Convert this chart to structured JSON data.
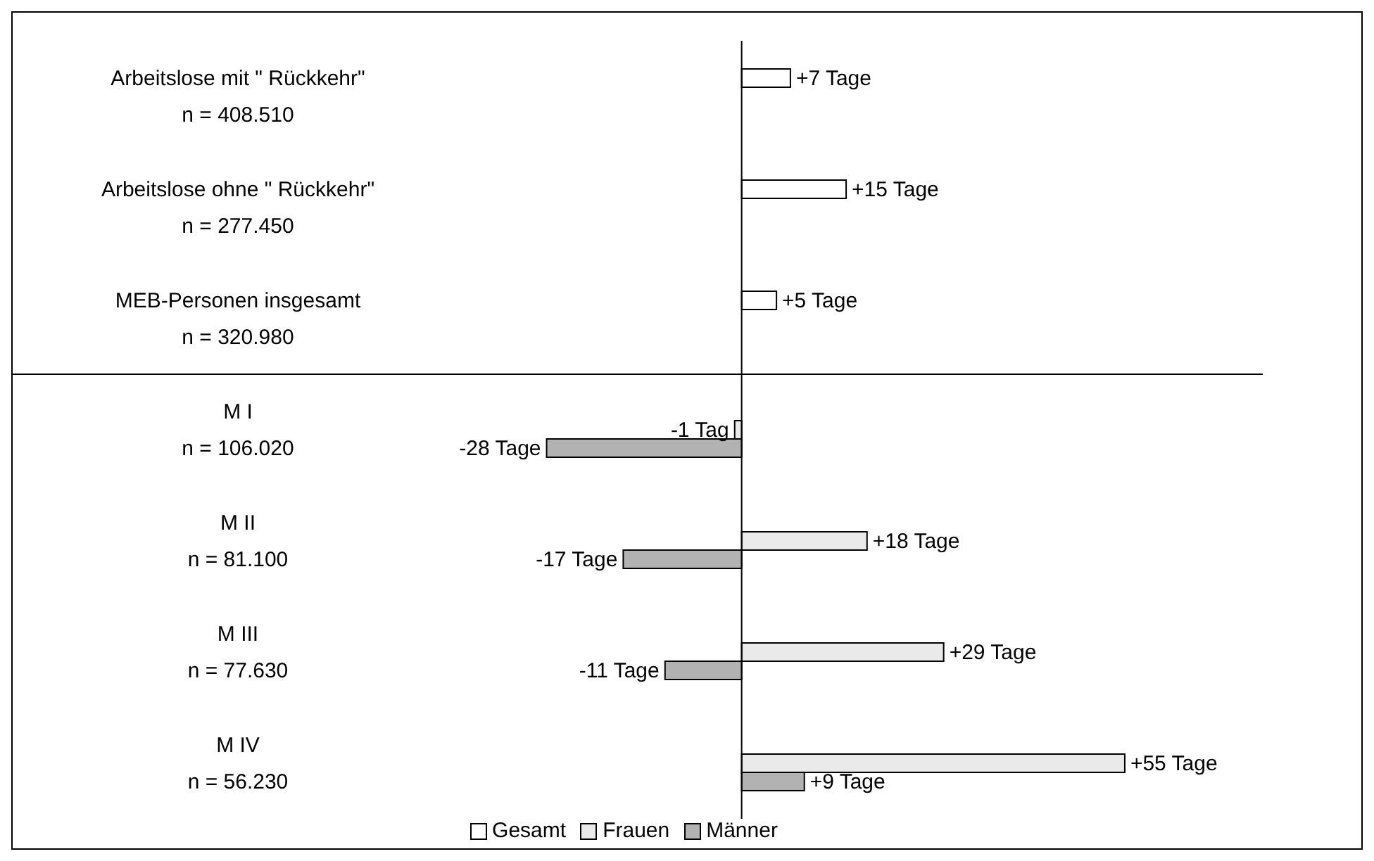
{
  "chart_data": {
    "type": "bar",
    "orientation": "horizontal",
    "categories": [
      "Arbeitslose mit \" Rückkehr\"\nn = 408.510",
      "Arbeitslose ohne \" Rückkehr\"\nn = 277.450",
      "MEB-Personen insgesamt\nn = 320.980",
      "M I\nn = 106.020",
      "M II\nn = 81.100",
      "M III\nn = 77.630",
      "M IV\nn = 56.230"
    ],
    "series": [
      {
        "name": "Gesamt",
        "color": "#ffffff",
        "values": [
          7,
          15,
          5,
          null,
          null,
          null,
          null
        ],
        "value_labels": [
          "+7 Tage",
          "+15 Tage",
          "+5 Tage",
          null,
          null,
          null,
          null
        ]
      },
      {
        "name": "Frauen",
        "color": "#eaeaea",
        "values": [
          null,
          null,
          null,
          -1,
          18,
          29,
          55
        ],
        "value_labels": [
          null,
          null,
          null,
          "-1 Tag",
          "+18 Tage",
          "+29 Tage",
          "+55 Tage"
        ]
      },
      {
        "name": "Männer",
        "color": "#b2b2b2",
        "values": [
          null,
          null,
          null,
          -28,
          -17,
          -11,
          9
        ],
        "value_labels": [
          null,
          null,
          null,
          "-28 Tage",
          "-17 Tage",
          "-11 Tage",
          "+9 Tage"
        ]
      }
    ],
    "legend": "bottom",
    "grid": false
  }
}
